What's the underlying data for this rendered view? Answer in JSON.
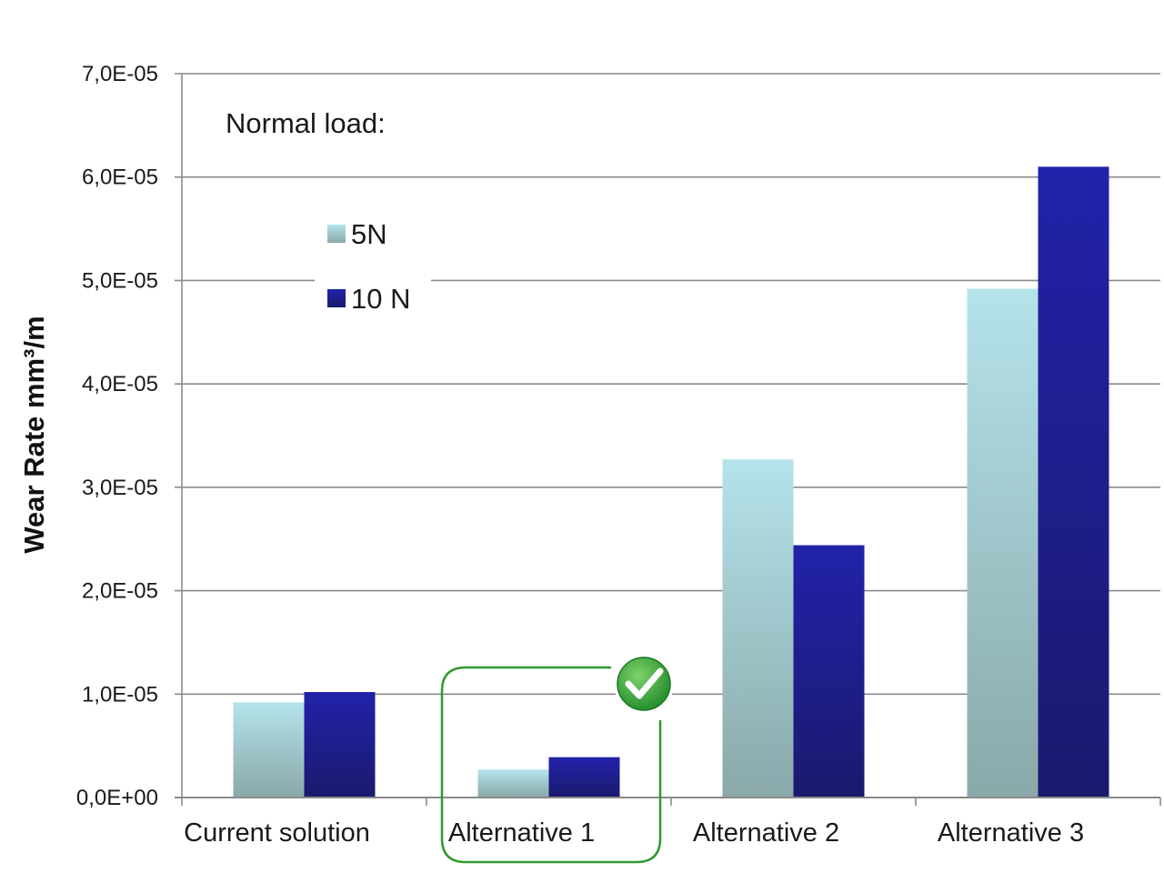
{
  "chart_data": {
    "type": "bar",
    "categories": [
      "Current solution",
      "Alternative 1",
      "Alternative 2",
      "Alternative 3"
    ],
    "series": [
      {
        "name": "5N",
        "values": [
          9.2e-06,
          2.7e-06,
          3.27e-05,
          4.92e-05
        ],
        "color": "#a9d6dc"
      },
      {
        "name": "10 N",
        "values": [
          1.02e-05,
          3.9e-06,
          2.44e-05,
          6.1e-05
        ],
        "color": "#1f1f99"
      }
    ],
    "title": "",
    "xlabel": "",
    "ylabel": "Wear Rate mm³/m",
    "ylim": [
      0,
      7e-05
    ],
    "yticks": [
      {
        "value": 0,
        "label": "0,0E+00"
      },
      {
        "value": 1e-05,
        "label": "1,0E-05"
      },
      {
        "value": 2e-05,
        "label": "2,0E-05"
      },
      {
        "value": 3e-05,
        "label": "3,0E-05"
      },
      {
        "value": 4e-05,
        "label": "4,0E-05"
      },
      {
        "value": 5e-05,
        "label": "5,0E-05"
      },
      {
        "value": 6e-05,
        "label": "6,0E-05"
      },
      {
        "value": 7e-05,
        "label": "7,0E-05"
      }
    ],
    "grid": true,
    "legend": {
      "title": "Normal load:",
      "placement": "top-left"
    },
    "highlight": {
      "category": "Alternative 1",
      "marker": "check-icon",
      "color": "#2e9a2e"
    }
  }
}
